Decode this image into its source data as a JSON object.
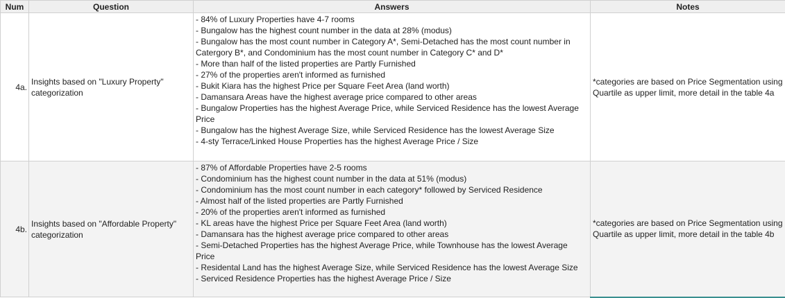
{
  "headers": {
    "num": "Num",
    "question": "Question",
    "answers": "Answers",
    "notes": "Notes"
  },
  "rows": [
    {
      "num": "4a.",
      "question": "Insights based on \"Luxury Property\" categorization",
      "answers": [
        "- 84% of Luxury Properties have 4-7 rooms",
        "- Bungalow has the highest count number in the data at 28% (modus)",
        "- Bungalow has the most count number in Category A*, Semi-Detached has the most count number in Catergory B*, and Condominium has the most count number in Category C* and D*",
        "- More than half of the listed properties are Partly Furnished",
        "- 27% of the properties aren't informed as furnished",
        "- Bukit Kiara has the highest Price per Square Feet Area (land worth)",
        "- Damansara Areas have the highest average price compared to other areas",
        "- Bungalow Properties has the highest Average Price, while Serviced Residence has the lowest Average Price",
        "- Bungalow has the highest Average Size, while Serviced Residence has the lowest Average Size",
        "- 4-sty Terrace/Linked House Properties has the highest Average Price / Size"
      ],
      "notes": "*categories are based on Price Segmentation using Quartile as upper limit, more detail in the table 4a"
    },
    {
      "num": "4b.",
      "question": "Insights based on \"Affordable Property\" categorization",
      "answers": [
        "- 87% of Affordable Properties have 2-5 rooms",
        "- Condominium has the highest count number in the data at 51% (modus)",
        "- Condominium has the most count number in each category* followed by Serviced Residence",
        "- Almost half of the listed properties are Partly Furnished",
        "- 20% of the properties aren't informed as furnished",
        "- KL areas have the highest Price per Square Feet Area (land worth)",
        "- Damansara has the highest average price compared to other areas",
        "- Semi-Detached Properties has the highest Average Price, while Townhouse has the lowest Average Price",
        "- Residental Land has the highest Average Size, while Serviced Residence has the lowest Average Size",
        "- Serviced Residence Properties has the highest Average Price / Size"
      ],
      "notes": "*categories are based on Price Segmentation using Quartile as upper limit, more detail in the table 4b"
    }
  ]
}
